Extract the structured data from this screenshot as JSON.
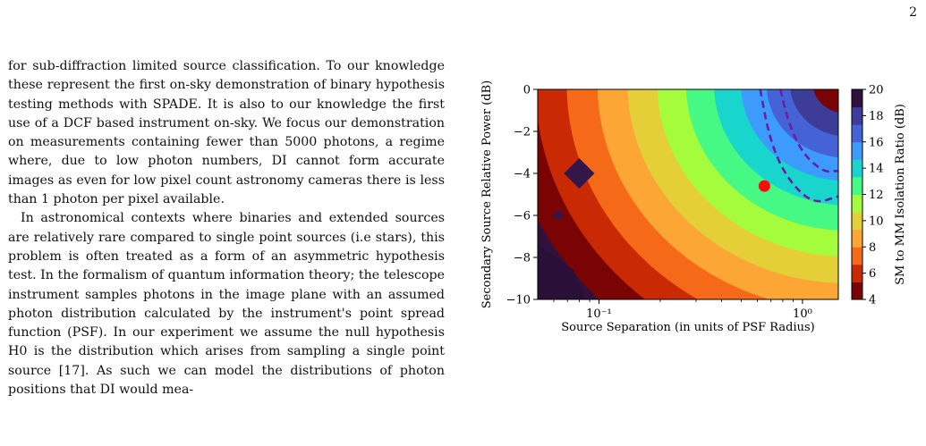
{
  "page_number": "2",
  "paragraphs": [
    "for sub-diffraction limited source classification. To our knowledge these represent the first on-sky demonstration of binary hypothesis testing methods with SPADE. It is also to our knowledge the first use of a DCF based instrument on-sky. We focus our demonstration on measurements containing fewer than 5000 photons, a regime where, due to low photon numbers, DI cannot form accurate images as even for low pixel count astronomy cameras there is less than 1 photon per pixel available.",
    "In astronomical contexts where binaries and extended sources are relatively rare compared to single point sources (i.e stars), this problem is often treated as a form of an asymmetric hypothesis test. In the formalism of quantum information theory; the telescope instrument samples photons in the image plane with an assumed photon distribution calculated by the instrument's point spread function (PSF). In our experiment we assume the null hypothesis H0 is the distribution which arises from sampling a single point source [17]. As such we can model the distributions of photon positions that DI would mea-"
  ],
  "chart_data": {
    "type": "heatmap",
    "xlabel": "Source Separation (in units of PSF Radius)",
    "ylabel": "Secondary Source Relative Power (dB)",
    "colorbar_label": "SM to MM Isolation Ratio (dB)",
    "x_scale": "log",
    "xlim": [
      0.05,
      1.5
    ],
    "ylim": [
      -10,
      0
    ],
    "x_tick_labels": [
      "10⁻¹",
      "10⁰"
    ],
    "x_ticks": [
      0.1,
      1
    ],
    "y_ticks": [
      0,
      -2,
      -4,
      -6,
      -8,
      -10
    ],
    "y_tick_labels": [
      "0",
      "−2",
      "−4",
      "−6",
      "−8",
      "−10"
    ],
    "colorbar_range": [
      4,
      20
    ],
    "colorbar_ticks": [
      "20",
      "18",
      "16",
      "14",
      "12",
      "10",
      "8",
      "6",
      "4"
    ],
    "colormap": [
      "#7a0403",
      "#c92903",
      "#f56918",
      "#fca635",
      "#e4cf38",
      "#a5fc3c",
      "#46f884",
      "#18d6cb",
      "#3e9bfe",
      "#4662d7",
      "#3d3c98",
      "#30123b"
    ],
    "marker": {
      "x": 0.65,
      "y": -4.6,
      "color": "#ff0a0a"
    },
    "dashed_contour": {
      "color": "#6a1fa0",
      "levels_db": [
        15,
        12
      ]
    }
  }
}
